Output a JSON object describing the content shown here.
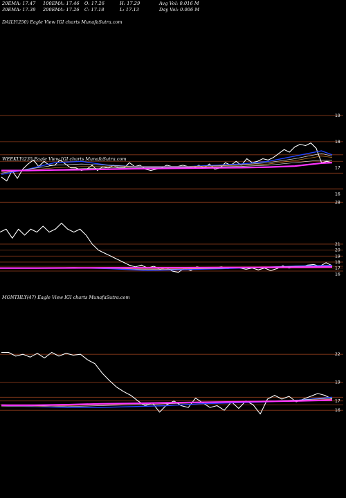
{
  "header": {
    "row1": [
      "20EMA: 17.47",
      "100EMA: 17.46",
      "O: 17.26",
      "H: 17.29",
      "Avg Vol: 0.016  M"
    ],
    "row2": [
      "30EMA: 17.39",
      "200EMA: 17.26",
      "C: 17.18",
      "L: 17.13",
      "Day Vol: 0.006  M"
    ]
  },
  "colors": {
    "background": "#000000",
    "price": "#ffffff",
    "ema_blue": "#2244ff",
    "ema_magenta": "#ff33ff",
    "grid": "#8b3a1a",
    "ema_white": "#d9d9d9",
    "ema_orange": "#c8862a"
  },
  "chart_data": [
    {
      "type": "line",
      "label": "DAILY(250) Eagle   View  IGI charts MunafaSutra.com",
      "tick_labels": [
        "19",
        "18",
        "17",
        "16"
      ],
      "ylim": [
        15.7,
        19.5
      ],
      "gridlines": [
        19,
        18,
        17.5,
        17.25,
        16.8,
        16.2
      ],
      "series": [
        {
          "role": "price",
          "x": [
            0,
            4,
            8,
            12,
            16,
            20,
            24,
            28,
            32,
            36,
            40,
            44,
            48,
            52,
            56,
            60,
            64,
            68,
            72,
            76,
            80,
            84,
            88,
            92,
            96,
            100,
            104,
            108,
            112,
            116,
            120,
            124,
            128,
            132,
            136,
            140,
            144,
            148,
            152,
            156,
            160,
            164,
            168,
            172,
            176,
            180,
            184,
            188,
            192,
            196,
            200,
            204,
            208,
            212,
            216,
            220,
            224,
            228,
            232,
            236,
            240,
            244,
            248
          ],
          "values": [
            16.65,
            16.5,
            16.9,
            16.6,
            16.95,
            17.15,
            17.3,
            17.05,
            17.25,
            17.1,
            17.1,
            17.3,
            17.15,
            17.0,
            17.0,
            16.9,
            16.95,
            17.1,
            16.9,
            17.05,
            17.0,
            17.1,
            17.0,
            17.0,
            17.2,
            17.05,
            17.1,
            16.95,
            16.9,
            16.95,
            17.0,
            17.1,
            17.05,
            17.05,
            17.1,
            17.05,
            17.0,
            17.1,
            17.0,
            17.15,
            16.95,
            17.0,
            17.2,
            17.1,
            17.25,
            17.1,
            17.35,
            17.2,
            17.25,
            17.35,
            17.3,
            17.4,
            17.55,
            17.7,
            17.6,
            17.8,
            17.9,
            17.85,
            17.95,
            17.75,
            17.2,
            17.25,
            17.2
          ]
        },
        {
          "role": "ema",
          "x": [
            0,
            20,
            40,
            60,
            80,
            100,
            120,
            140,
            160,
            180,
            200,
            220,
            240,
            248
          ],
          "values": [
            16.75,
            16.95,
            17.2,
            17.25,
            17.1,
            17.05,
            17.05,
            17.05,
            17.1,
            17.15,
            17.25,
            17.45,
            17.65,
            17.5
          ]
        },
        {
          "role": "ema",
          "x": [
            0,
            20,
            40,
            60,
            80,
            100,
            120,
            140,
            160,
            180,
            200,
            220,
            240,
            248
          ],
          "values": [
            16.8,
            16.95,
            17.1,
            17.15,
            17.1,
            17.05,
            17.05,
            17.05,
            17.08,
            17.12,
            17.2,
            17.35,
            17.55,
            17.45
          ]
        },
        {
          "role": "ema",
          "x": [
            0,
            20,
            40,
            60,
            80,
            100,
            120,
            140,
            160,
            180,
            200,
            220,
            240,
            248
          ],
          "values": [
            16.85,
            16.92,
            17.0,
            17.05,
            17.05,
            17.05,
            17.05,
            17.05,
            17.07,
            17.1,
            17.15,
            17.28,
            17.45,
            17.4
          ]
        },
        {
          "role": "ema",
          "x": [
            0,
            20,
            40,
            60,
            80,
            100,
            120,
            140,
            160,
            180,
            200,
            220,
            240,
            248
          ],
          "values": [
            16.88,
            16.9,
            16.93,
            16.97,
            17.0,
            17.02,
            17.02,
            17.03,
            17.04,
            17.06,
            17.1,
            17.2,
            17.3,
            17.3
          ]
        },
        {
          "role": "ema200",
          "x": [
            0,
            20,
            40,
            60,
            80,
            100,
            120,
            140,
            160,
            180,
            200,
            220,
            240,
            248
          ],
          "values": [
            16.9,
            16.9,
            16.92,
            16.93,
            16.95,
            16.97,
            16.98,
            16.99,
            17.0,
            17.01,
            17.03,
            17.07,
            17.18,
            17.2
          ]
        }
      ]
    },
    {
      "type": "line",
      "label": "WEEKLY(235  Eagle   View  IGI charts MunafaSutra.com",
      "tick_labels": [
        "28",
        "21",
        "20",
        "19",
        "18",
        "17",
        "16"
      ],
      "ylim": [
        15.8,
        28.5
      ],
      "gridlines": [
        28,
        21,
        20,
        19,
        18,
        17.3,
        17,
        16.5
      ],
      "series": [
        {
          "role": "price",
          "x": [
            0,
            8,
            16,
            24,
            32,
            40,
            48,
            56,
            64,
            72,
            80,
            88,
            96,
            104,
            112,
            120,
            128,
            136,
            144,
            152,
            160,
            168,
            176,
            184,
            192,
            200,
            208,
            216,
            224,
            232,
            240,
            248,
            256,
            264,
            272,
            280,
            288,
            296,
            304,
            312,
            320,
            328,
            336,
            344,
            352,
            360,
            368,
            376,
            384,
            392,
            400,
            408,
            416,
            424,
            432
          ],
          "values": [
            23,
            23.5,
            22,
            23.5,
            22.5,
            23.5,
            23,
            24,
            23,
            23.5,
            24.5,
            23.5,
            23,
            23.5,
            22.5,
            21,
            20,
            19.5,
            19,
            18.5,
            18,
            17.5,
            17.2,
            17.5,
            17.0,
            17.3,
            16.8,
            17.1,
            16.5,
            16.3,
            17.0,
            16.6,
            17.2,
            17.0,
            17.1,
            17.0,
            17.2,
            16.9,
            17.1,
            17.0,
            16.8,
            17.0,
            16.7,
            17.0,
            16.6,
            16.9,
            17.4,
            17.0,
            17.3,
            17.2,
            17.5,
            17.6,
            17.3,
            17.9,
            17.4
          ]
        },
        {
          "role": "ema",
          "x": [
            0,
            48,
            96,
            144,
            192,
            240,
            288,
            336,
            384,
            432
          ],
          "values": [
            17.0,
            17.05,
            17.05,
            16.9,
            16.6,
            16.75,
            16.9,
            17.1,
            17.35,
            17.45
          ]
        },
        {
          "role": "ema",
          "x": [
            0,
            48,
            96,
            144,
            192,
            240,
            288,
            336,
            384,
            432
          ],
          "values": [
            17.05,
            17.05,
            17.1,
            17.0,
            16.75,
            16.85,
            16.95,
            17.15,
            17.3,
            17.35
          ]
        },
        {
          "role": "ema",
          "x": [
            0,
            48,
            96,
            144,
            192,
            240,
            288,
            336,
            384,
            432
          ],
          "values": [
            16.95,
            16.95,
            17.0,
            16.95,
            16.85,
            16.9,
            17.0,
            17.1,
            17.2,
            17.3
          ]
        },
        {
          "role": "ema200",
          "x": [
            0,
            48,
            96,
            144,
            192,
            240,
            288,
            336,
            384,
            432
          ],
          "values": [
            17.0,
            17.0,
            17.02,
            17.05,
            17.05,
            17.06,
            17.08,
            17.1,
            17.15,
            17.2
          ]
        }
      ]
    },
    {
      "type": "line",
      "label": "MONTHLY(47) Eagle   View  IGI charts MunafaSutra.com",
      "tick_labels": [
        "22",
        "19",
        "17",
        "16"
      ],
      "ylim": [
        15.2,
        23.2
      ],
      "gridlines": [
        22,
        19,
        17.4,
        17.0,
        16.6,
        16.0
      ],
      "series": [
        {
          "role": "price",
          "x": [
            0,
            10,
            20,
            30,
            40,
            50,
            60,
            70,
            80,
            90,
            100,
            110,
            120,
            130,
            140,
            150,
            160,
            170,
            180,
            190,
            200,
            210,
            220,
            230,
            240,
            250,
            260,
            270,
            280,
            290,
            300,
            310,
            320,
            330,
            340,
            350,
            360,
            370,
            380,
            390,
            400,
            410,
            420,
            430,
            440,
            450,
            460
          ],
          "values": [
            22.2,
            22.2,
            21.8,
            22.0,
            21.7,
            22.1,
            21.6,
            22.2,
            21.8,
            22.1,
            21.9,
            22.0,
            21.4,
            21.0,
            20.0,
            19.2,
            18.5,
            18.0,
            17.6,
            17.0,
            16.5,
            16.8,
            15.8,
            16.6,
            17.0,
            16.5,
            16.3,
            17.3,
            16.8,
            16.3,
            16.5,
            16.0,
            16.9,
            16.2,
            17.0,
            16.6,
            15.6,
            17.2,
            17.6,
            17.2,
            17.5,
            16.9,
            17.2,
            17.5,
            17.8,
            17.6,
            17.2
          ]
        },
        {
          "role": "ema",
          "x": [
            0,
            46,
            92,
            138,
            184,
            230,
            276,
            322,
            368,
            414,
            460
          ],
          "values": [
            16.5,
            16.4,
            16.3,
            16.3,
            16.4,
            16.5,
            16.7,
            16.8,
            16.9,
            17.1,
            17.4
          ]
        },
        {
          "role": "ema",
          "x": [
            0,
            46,
            92,
            138,
            184,
            230,
            276,
            322,
            368,
            414,
            460
          ],
          "values": [
            16.6,
            16.5,
            16.4,
            16.5,
            16.6,
            16.7,
            16.8,
            16.9,
            17.0,
            17.1,
            17.3
          ]
        },
        {
          "role": "ema",
          "x": [
            0,
            46,
            92,
            138,
            184,
            230,
            276,
            322,
            368,
            414,
            460
          ],
          "values": [
            16.4,
            16.4,
            16.5,
            16.6,
            16.7,
            16.8,
            16.85,
            16.9,
            17.0,
            17.05,
            17.2
          ]
        },
        {
          "role": "ema200",
          "x": [
            0,
            46,
            92,
            138,
            184,
            230,
            276,
            322,
            368,
            414,
            460
          ],
          "values": [
            16.55,
            16.55,
            16.6,
            16.7,
            16.75,
            16.8,
            16.85,
            16.9,
            16.95,
            17.0,
            17.1
          ]
        }
      ]
    }
  ]
}
